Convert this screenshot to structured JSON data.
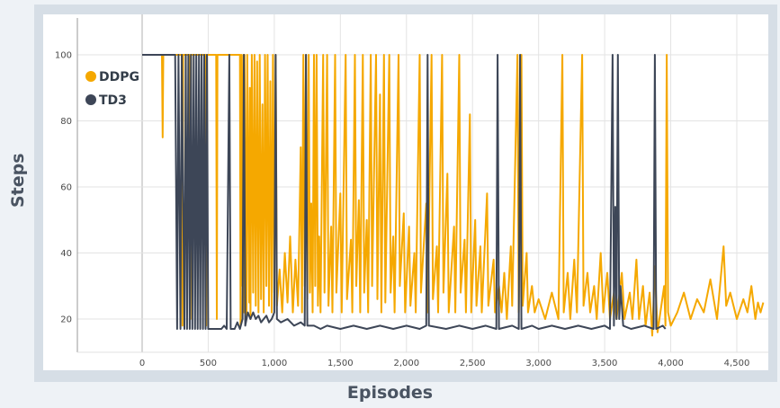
{
  "chart_data": {
    "type": "line",
    "xlabel": "Episodes",
    "ylabel": "Steps",
    "xlim": [
      -450,
      4700
    ],
    "ylim": [
      12,
      110
    ],
    "x_ticks": [
      {
        "value": 0,
        "label": "0"
      },
      {
        "value": 500,
        "label": "500"
      },
      {
        "value": 1000,
        "label": "1,000"
      },
      {
        "value": 1500,
        "label": "1,500"
      },
      {
        "value": 2000,
        "label": "2,000"
      },
      {
        "value": 2500,
        "label": "2,500"
      },
      {
        "value": 3000,
        "label": "3,000"
      },
      {
        "value": 3500,
        "label": "3,500"
      },
      {
        "value": 4000,
        "label": "4,000"
      },
      {
        "value": 4500,
        "label": "4,500"
      }
    ],
    "y_ticks": [
      {
        "value": 20,
        "label": "20"
      },
      {
        "value": 40,
        "label": "40"
      },
      {
        "value": 60,
        "label": "60"
      },
      {
        "value": 80,
        "label": "80"
      },
      {
        "value": 100,
        "label": "100"
      }
    ],
    "grid": true,
    "legend_position": "top-left",
    "series": [
      {
        "name": "DDPG",
        "color": "#f5a800",
        "points": [
          [
            0,
            100
          ],
          [
            150,
            100
          ],
          [
            155,
            75
          ],
          [
            160,
            100
          ],
          [
            300,
            100
          ],
          [
            305,
            18
          ],
          [
            310,
            100
          ],
          [
            360,
            100
          ],
          [
            365,
            20
          ],
          [
            370,
            100
          ],
          [
            480,
            100
          ],
          [
            485,
            18
          ],
          [
            490,
            100
          ],
          [
            560,
            100
          ],
          [
            565,
            20
          ],
          [
            570,
            100
          ],
          [
            740,
            100
          ],
          [
            745,
            18
          ],
          [
            750,
            100
          ],
          [
            760,
            30
          ],
          [
            765,
            100
          ],
          [
            770,
            22
          ],
          [
            775,
            100
          ],
          [
            790,
            20
          ],
          [
            795,
            100
          ],
          [
            810,
            25
          ],
          [
            815,
            90
          ],
          [
            820,
            20
          ],
          [
            830,
            100
          ],
          [
            840,
            28
          ],
          [
            850,
            100
          ],
          [
            860,
            24
          ],
          [
            870,
            98
          ],
          [
            880,
            22
          ],
          [
            890,
            100
          ],
          [
            900,
            26
          ],
          [
            910,
            85
          ],
          [
            920,
            22
          ],
          [
            930,
            100
          ],
          [
            940,
            30
          ],
          [
            950,
            100
          ],
          [
            960,
            24
          ],
          [
            970,
            92
          ],
          [
            980,
            22
          ],
          [
            990,
            100
          ],
          [
            1000,
            28
          ],
          [
            1010,
            100
          ],
          [
            1020,
            24
          ],
          [
            1040,
            35
          ],
          [
            1060,
            22
          ],
          [
            1080,
            40
          ],
          [
            1100,
            25
          ],
          [
            1120,
            45
          ],
          [
            1140,
            22
          ],
          [
            1160,
            38
          ],
          [
            1180,
            24
          ],
          [
            1200,
            72
          ],
          [
            1210,
            22
          ],
          [
            1220,
            100
          ],
          [
            1230,
            30
          ],
          [
            1240,
            100
          ],
          [
            1250,
            26
          ],
          [
            1260,
            100
          ],
          [
            1270,
            28
          ],
          [
            1280,
            55
          ],
          [
            1290,
            22
          ],
          [
            1300,
            100
          ],
          [
            1310,
            30
          ],
          [
            1320,
            100
          ],
          [
            1330,
            24
          ],
          [
            1340,
            45
          ],
          [
            1350,
            22
          ],
          [
            1370,
            100
          ],
          [
            1380,
            28
          ],
          [
            1400,
            100
          ],
          [
            1410,
            24
          ],
          [
            1430,
            48
          ],
          [
            1440,
            22
          ],
          [
            1460,
            100
          ],
          [
            1470,
            28
          ],
          [
            1500,
            58
          ],
          [
            1510,
            22
          ],
          [
            1540,
            100
          ],
          [
            1550,
            26
          ],
          [
            1580,
            44
          ],
          [
            1590,
            22
          ],
          [
            1610,
            100
          ],
          [
            1620,
            30
          ],
          [
            1640,
            56
          ],
          [
            1650,
            22
          ],
          [
            1670,
            100
          ],
          [
            1680,
            28
          ],
          [
            1700,
            50
          ],
          [
            1710,
            22
          ],
          [
            1730,
            100
          ],
          [
            1740,
            30
          ],
          [
            1770,
            100
          ],
          [
            1780,
            26
          ],
          [
            1800,
            88
          ],
          [
            1810,
            22
          ],
          [
            1830,
            100
          ],
          [
            1840,
            25
          ],
          [
            1870,
            100
          ],
          [
            1880,
            28
          ],
          [
            1900,
            45
          ],
          [
            1910,
            22
          ],
          [
            1940,
            100
          ],
          [
            1950,
            30
          ],
          [
            1980,
            52
          ],
          [
            1990,
            22
          ],
          [
            2020,
            48
          ],
          [
            2030,
            24
          ],
          [
            2060,
            40
          ],
          [
            2070,
            22
          ],
          [
            2100,
            100
          ],
          [
            2110,
            28
          ],
          [
            2150,
            55
          ],
          [
            2160,
            22
          ],
          [
            2190,
            100
          ],
          [
            2200,
            26
          ],
          [
            2230,
            42
          ],
          [
            2240,
            22
          ],
          [
            2270,
            100
          ],
          [
            2280,
            28
          ],
          [
            2310,
            64
          ],
          [
            2320,
            22
          ],
          [
            2360,
            48
          ],
          [
            2370,
            22
          ],
          [
            2400,
            100
          ],
          [
            2410,
            28
          ],
          [
            2440,
            44
          ],
          [
            2450,
            22
          ],
          [
            2480,
            82
          ],
          [
            2490,
            22
          ],
          [
            2520,
            50
          ],
          [
            2530,
            24
          ],
          [
            2560,
            42
          ],
          [
            2570,
            22
          ],
          [
            2610,
            58
          ],
          [
            2620,
            24
          ],
          [
            2660,
            38
          ],
          [
            2670,
            22
          ],
          [
            2700,
            30
          ],
          [
            2720,
            22
          ],
          [
            2740,
            34
          ],
          [
            2760,
            20
          ],
          [
            2790,
            42
          ],
          [
            2800,
            24
          ],
          [
            2840,
            100
          ],
          [
            2850,
            22
          ],
          [
            2870,
            100
          ],
          [
            2880,
            24
          ],
          [
            2910,
            40
          ],
          [
            2920,
            22
          ],
          [
            2950,
            30
          ],
          [
            2970,
            22
          ],
          [
            3000,
            26
          ],
          [
            3050,
            20
          ],
          [
            3100,
            28
          ],
          [
            3150,
            20
          ],
          [
            3180,
            100
          ],
          [
            3190,
            22
          ],
          [
            3220,
            34
          ],
          [
            3240,
            20
          ],
          [
            3270,
            38
          ],
          [
            3290,
            22
          ],
          [
            3330,
            100
          ],
          [
            3340,
            24
          ],
          [
            3370,
            34
          ],
          [
            3390,
            22
          ],
          [
            3420,
            30
          ],
          [
            3440,
            20
          ],
          [
            3470,
            40
          ],
          [
            3490,
            22
          ],
          [
            3520,
            34
          ],
          [
            3540,
            20
          ],
          [
            3570,
            28
          ],
          [
            3590,
            20
          ],
          [
            3630,
            34
          ],
          [
            3650,
            20
          ],
          [
            3690,
            28
          ],
          [
            3710,
            20
          ],
          [
            3740,
            38
          ],
          [
            3760,
            20
          ],
          [
            3790,
            30
          ],
          [
            3810,
            18
          ],
          [
            3840,
            28
          ],
          [
            3860,
            15
          ],
          [
            3880,
            36
          ],
          [
            3900,
            16
          ],
          [
            3950,
            30
          ],
          [
            3960,
            18
          ],
          [
            3970,
            100
          ],
          [
            3980,
            22
          ],
          [
            4000,
            18
          ],
          [
            4050,
            22
          ],
          [
            4100,
            28
          ],
          [
            4150,
            20
          ],
          [
            4200,
            26
          ],
          [
            4250,
            22
          ],
          [
            4300,
            32
          ],
          [
            4350,
            20
          ],
          [
            4400,
            42
          ],
          [
            4420,
            24
          ],
          [
            4450,
            28
          ],
          [
            4500,
            20
          ],
          [
            4550,
            26
          ],
          [
            4580,
            22
          ],
          [
            4610,
            30
          ],
          [
            4640,
            20
          ],
          [
            4660,
            25
          ],
          [
            4680,
            22
          ],
          [
            4700,
            25
          ]
        ]
      },
      {
        "name": "TD3",
        "color": "#3d4657",
        "points": [
          [
            0,
            100
          ],
          [
            250,
            100
          ],
          [
            265,
            17
          ],
          [
            275,
            100
          ],
          [
            290,
            17
          ],
          [
            300,
            100
          ],
          [
            320,
            17
          ],
          [
            330,
            100
          ],
          [
            340,
            17
          ],
          [
            350,
            100
          ],
          [
            360,
            17
          ],
          [
            370,
            100
          ],
          [
            380,
            17
          ],
          [
            390,
            100
          ],
          [
            400,
            17
          ],
          [
            410,
            100
          ],
          [
            420,
            17
          ],
          [
            430,
            100
          ],
          [
            440,
            17
          ],
          [
            450,
            100
          ],
          [
            460,
            17
          ],
          [
            470,
            100
          ],
          [
            480,
            17
          ],
          [
            490,
            100
          ],
          [
            500,
            17
          ],
          [
            600,
            17
          ],
          [
            620,
            18
          ],
          [
            640,
            17
          ],
          [
            660,
            100
          ],
          [
            670,
            17
          ],
          [
            700,
            17
          ],
          [
            720,
            19
          ],
          [
            740,
            17
          ],
          [
            760,
            20
          ],
          [
            770,
            100
          ],
          [
            780,
            18
          ],
          [
            800,
            22
          ],
          [
            820,
            20
          ],
          [
            840,
            22
          ],
          [
            860,
            20
          ],
          [
            880,
            21
          ],
          [
            900,
            19
          ],
          [
            920,
            20
          ],
          [
            940,
            21
          ],
          [
            960,
            19
          ],
          [
            980,
            20
          ],
          [
            1000,
            22
          ],
          [
            1010,
            100
          ],
          [
            1020,
            20
          ],
          [
            1050,
            19
          ],
          [
            1100,
            20
          ],
          [
            1150,
            18
          ],
          [
            1200,
            19
          ],
          [
            1230,
            18
          ],
          [
            1240,
            100
          ],
          [
            1250,
            18
          ],
          [
            1300,
            18
          ],
          [
            1350,
            17
          ],
          [
            1400,
            18
          ],
          [
            1500,
            17
          ],
          [
            1600,
            18
          ],
          [
            1700,
            17
          ],
          [
            1800,
            18
          ],
          [
            1900,
            17
          ],
          [
            2000,
            18
          ],
          [
            2100,
            17
          ],
          [
            2150,
            18
          ],
          [
            2160,
            100
          ],
          [
            2170,
            18
          ],
          [
            2300,
            17
          ],
          [
            2400,
            18
          ],
          [
            2500,
            17
          ],
          [
            2600,
            18
          ],
          [
            2680,
            17
          ],
          [
            2690,
            100
          ],
          [
            2700,
            17
          ],
          [
            2800,
            18
          ],
          [
            2850,
            17
          ],
          [
            2860,
            100
          ],
          [
            2870,
            17
          ],
          [
            2950,
            18
          ],
          [
            3000,
            17
          ],
          [
            3100,
            18
          ],
          [
            3200,
            17
          ],
          [
            3300,
            18
          ],
          [
            3400,
            17
          ],
          [
            3500,
            18
          ],
          [
            3540,
            17
          ],
          [
            3560,
            100
          ],
          [
            3570,
            18
          ],
          [
            3580,
            54
          ],
          [
            3590,
            20
          ],
          [
            3600,
            100
          ],
          [
            3610,
            20
          ],
          [
            3620,
            30
          ],
          [
            3640,
            18
          ],
          [
            3700,
            17
          ],
          [
            3800,
            18
          ],
          [
            3870,
            17
          ],
          [
            3880,
            100
          ],
          [
            3890,
            17
          ],
          [
            3940,
            18
          ],
          [
            3960,
            17
          ]
        ]
      }
    ]
  }
}
